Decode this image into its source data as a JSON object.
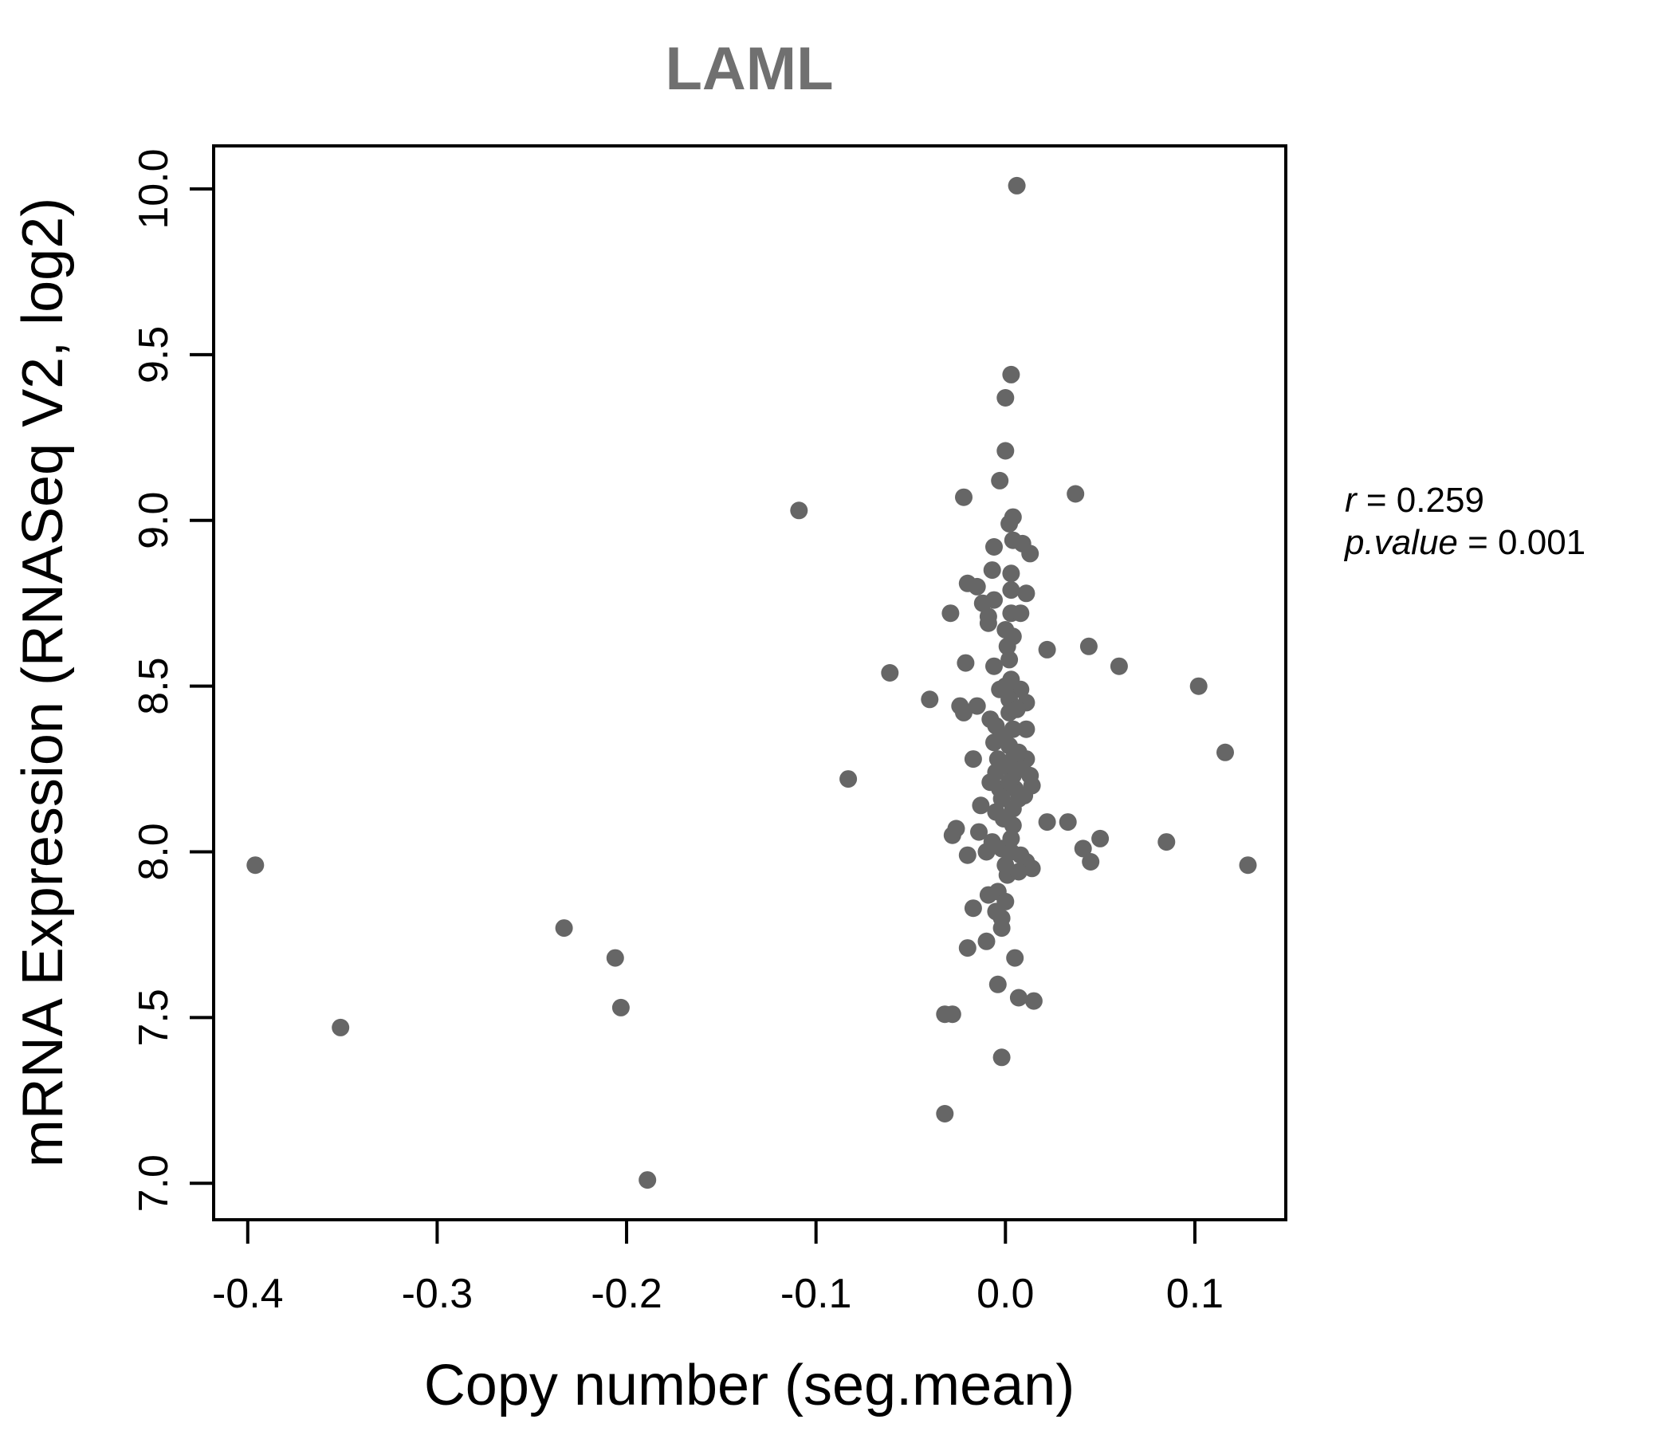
{
  "title": "LAML",
  "annotations": [
    {
      "symbol": "r",
      "rest": " = 0.259"
    },
    {
      "symbol": "p.value",
      "rest": " = 0.001"
    }
  ],
  "colors": {
    "point": "#666666",
    "title": "#707070",
    "axis": "#000000",
    "background": "#ffffff"
  },
  "chart_data": {
    "type": "scatter",
    "title": "LAML",
    "xlabel": "Copy number (seg.mean)",
    "ylabel": "mRNA Expression (RNASeq V2, log2)",
    "xlim": [
      -0.418,
      0.148
    ],
    "ylim": [
      6.89,
      10.13
    ],
    "x_ticks": [
      -0.4,
      -0.3,
      -0.2,
      -0.1,
      0,
      0.1
    ],
    "x_tick_labels": [
      "-0.4",
      "-0.3",
      "-0.2",
      "-0.1",
      "0.0",
      "0.1"
    ],
    "y_ticks": [
      7,
      7.5,
      8,
      8.5,
      9,
      9.5,
      10
    ],
    "y_tick_labels": [
      "7.0",
      "7.5",
      "8.0",
      "8.5",
      "9.0",
      "9.5",
      "10.0"
    ],
    "grid": false,
    "legend": null,
    "point_radius": 11,
    "stats": {
      "r": 0.259,
      "p_value": 0.001
    },
    "points": [
      [
        -0.396,
        7.96
      ],
      [
        -0.351,
        7.47
      ],
      [
        -0.233,
        7.77
      ],
      [
        -0.206,
        7.68
      ],
      [
        -0.203,
        7.53
      ],
      [
        -0.189,
        7.01
      ],
      [
        -0.109,
        9.03
      ],
      [
        -0.083,
        8.22
      ],
      [
        -0.061,
        8.54
      ],
      [
        0.006,
        10.01
      ],
      [
        0.003,
        9.44
      ],
      [
        0.0,
        9.37
      ],
      [
        0.0,
        9.21
      ],
      [
        -0.003,
        9.12
      ],
      [
        -0.022,
        9.07
      ],
      [
        0.037,
        9.08
      ],
      [
        0.004,
        9.01
      ],
      [
        0.002,
        8.99
      ],
      [
        -0.006,
        8.92
      ],
      [
        0.004,
        8.94
      ],
      [
        0.009,
        8.93
      ],
      [
        0.013,
        8.9
      ],
      [
        -0.007,
        8.85
      ],
      [
        0.003,
        8.84
      ],
      [
        -0.02,
        8.81
      ],
      [
        -0.015,
        8.8
      ],
      [
        0.003,
        8.79
      ],
      [
        -0.006,
        8.76
      ],
      [
        -0.012,
        8.75
      ],
      [
        0.011,
        8.78
      ],
      [
        -0.029,
        8.72
      ],
      [
        -0.009,
        8.71
      ],
      [
        0.003,
        8.72
      ],
      [
        0.008,
        8.72
      ],
      [
        -0.009,
        8.69
      ],
      [
        0.0,
        8.67
      ],
      [
        0.004,
        8.65
      ],
      [
        0.001,
        8.62
      ],
      [
        0.022,
        8.61
      ],
      [
        0.044,
        8.62
      ],
      [
        -0.021,
        8.57
      ],
      [
        0.002,
        8.58
      ],
      [
        -0.006,
        8.56
      ],
      [
        0.06,
        8.56
      ],
      [
        0.102,
        8.5
      ],
      [
        -0.04,
        8.46
      ],
      [
        -0.024,
        8.44
      ],
      [
        -0.015,
        8.44
      ],
      [
        -0.022,
        8.42
      ],
      [
        -0.008,
        8.4
      ],
      [
        0.003,
        8.52
      ],
      [
        -0.003,
        8.49
      ],
      [
        0.008,
        8.49
      ],
      [
        0.002,
        8.46
      ],
      [
        0.011,
        8.45
      ],
      [
        0.002,
        8.42
      ],
      [
        -0.005,
        8.38
      ],
      [
        0.004,
        8.37
      ],
      [
        0.011,
        8.37
      ],
      [
        -0.006,
        8.33
      ],
      [
        0.002,
        8.32
      ],
      [
        -0.004,
        8.28
      ],
      [
        -0.017,
        8.28
      ],
      [
        0.004,
        8.28
      ],
      [
        0.011,
        8.28
      ],
      [
        0.116,
        8.3
      ],
      [
        -0.005,
        8.24
      ],
      [
        0.004,
        8.23
      ],
      [
        0.013,
        8.23
      ],
      [
        -0.003,
        8.19
      ],
      [
        0.005,
        8.19
      ],
      [
        0.014,
        8.2
      ],
      [
        -0.002,
        8.16
      ],
      [
        0.007,
        8.16
      ],
      [
        -0.013,
        8.14
      ],
      [
        -0.005,
        8.12
      ],
      [
        0.004,
        8.13
      ],
      [
        0.022,
        8.09
      ],
      [
        0.033,
        8.09
      ],
      [
        -0.026,
        8.07
      ],
      [
        -0.014,
        8.06
      ],
      [
        0.004,
        8.08
      ],
      [
        -0.028,
        8.05
      ],
      [
        0.05,
        8.04
      ],
      [
        0.041,
        8.01
      ],
      [
        0.085,
        8.03
      ],
      [
        0.045,
        7.97
      ],
      [
        0.128,
        7.96
      ],
      [
        -0.02,
        7.99
      ],
      [
        -0.01,
        8.0
      ],
      [
        -0.002,
        8.01
      ],
      [
        0.003,
        8.0
      ],
      [
        0.008,
        7.99
      ],
      [
        0.011,
        7.97
      ],
      [
        0.014,
        7.95
      ],
      [
        0.001,
        7.93
      ],
      [
        0.007,
        7.94
      ],
      [
        -0.009,
        7.87
      ],
      [
        -0.004,
        7.88
      ],
      [
        0.0,
        7.85
      ],
      [
        -0.017,
        7.83
      ],
      [
        -0.005,
        7.82
      ],
      [
        -0.002,
        7.8
      ],
      [
        -0.002,
        7.77
      ],
      [
        -0.01,
        7.73
      ],
      [
        -0.02,
        7.71
      ],
      [
        0.005,
        7.68
      ],
      [
        -0.004,
        7.6
      ],
      [
        0.007,
        7.56
      ],
      [
        0.015,
        7.55
      ],
      [
        -0.032,
        7.51
      ],
      [
        -0.028,
        7.51
      ],
      [
        -0.002,
        7.38
      ],
      [
        -0.032,
        7.21
      ],
      [
        0.0,
        8.5
      ],
      [
        0.006,
        8.43
      ],
      [
        -0.002,
        8.35
      ],
      [
        0.007,
        8.3
      ],
      [
        -0.001,
        8.26
      ],
      [
        0.009,
        8.25
      ],
      [
        -0.008,
        8.21
      ],
      [
        0.002,
        8.21
      ],
      [
        0.01,
        8.17
      ],
      [
        -0.001,
        8.1
      ],
      [
        0.003,
        8.04
      ],
      [
        -0.007,
        8.03
      ],
      [
        0.0,
        7.96
      ]
    ]
  }
}
